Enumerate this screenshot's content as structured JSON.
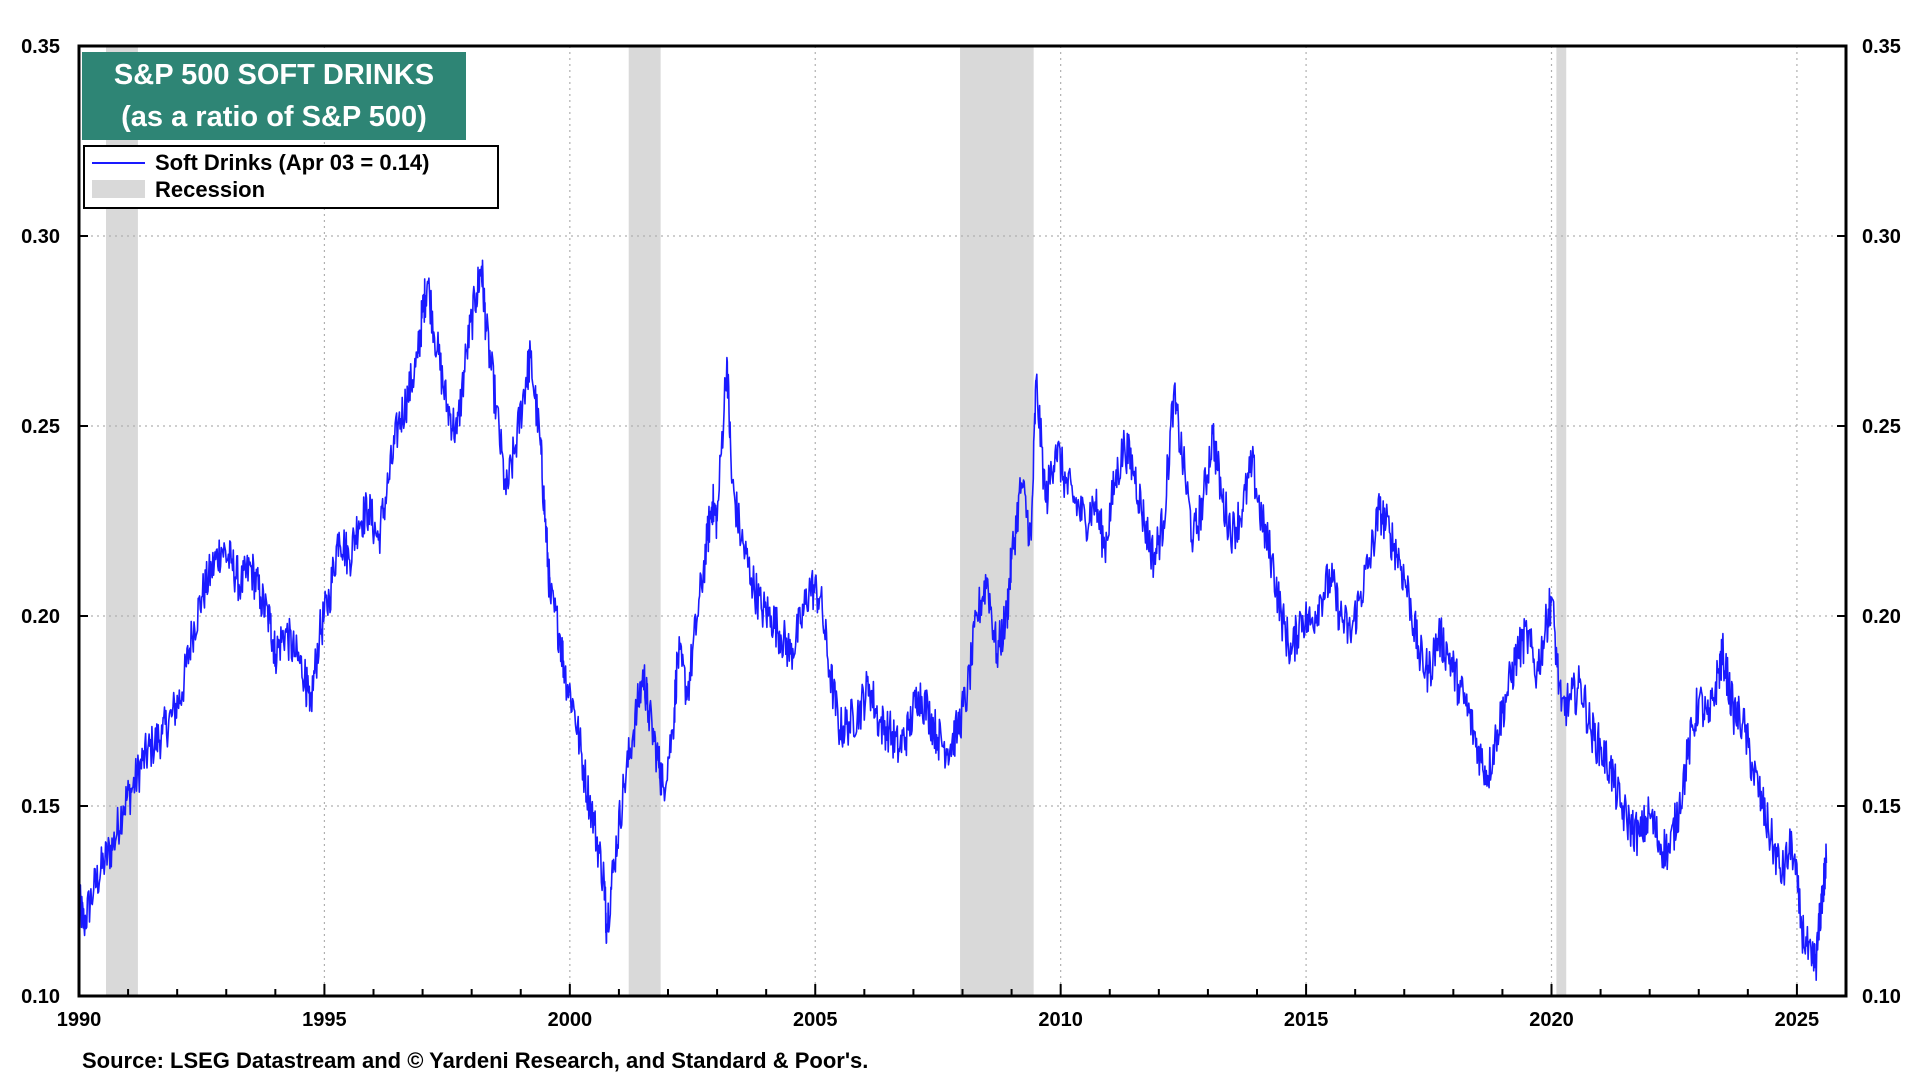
{
  "chart_data": {
    "type": "line",
    "title_lines": [
      "S&P 500 SOFT DRINKS",
      "(as a ratio of S&P 500)"
    ],
    "xlim": [
      1990,
      2026
    ],
    "ylim": [
      0.1,
      0.35
    ],
    "y_ticks": [
      "0.10",
      "0.15",
      "0.20",
      "0.25",
      "0.30",
      "0.35"
    ],
    "x_ticks": [
      "1990",
      "1995",
      "2000",
      "2005",
      "2010",
      "2015",
      "2020",
      "2025"
    ],
    "grid": true,
    "legend_position": "top-left",
    "legend": [
      {
        "label": "Soft Drinks (Apr 03 = 0.14)",
        "kind": "line"
      },
      {
        "label": "Recession",
        "kind": "band"
      }
    ],
    "recessions": [
      [
        1990.55,
        1991.2
      ],
      [
        2001.2,
        2001.85
      ],
      [
        2007.95,
        2009.45
      ],
      [
        2020.1,
        2020.3
      ]
    ],
    "series": [
      {
        "name": "Soft Drinks",
        "color": "#1a1aff",
        "points": [
          [
            1990.0,
            0.125
          ],
          [
            1990.1,
            0.119
          ],
          [
            1990.3,
            0.128
          ],
          [
            1990.5,
            0.135
          ],
          [
            1990.7,
            0.14
          ],
          [
            1990.9,
            0.15
          ],
          [
            1991.1,
            0.155
          ],
          [
            1991.3,
            0.162
          ],
          [
            1991.5,
            0.166
          ],
          [
            1991.7,
            0.169
          ],
          [
            1991.9,
            0.174
          ],
          [
            1992.1,
            0.18
          ],
          [
            1992.3,
            0.195
          ],
          [
            1992.5,
            0.205
          ],
          [
            1992.7,
            0.212
          ],
          [
            1992.9,
            0.218
          ],
          [
            1993.1,
            0.214
          ],
          [
            1993.3,
            0.208
          ],
          [
            1993.5,
            0.213
          ],
          [
            1993.7,
            0.205
          ],
          [
            1993.9,
            0.198
          ],
          [
            1994.0,
            0.19
          ],
          [
            1994.2,
            0.196
          ],
          [
            1994.4,
            0.19
          ],
          [
            1994.6,
            0.185
          ],
          [
            1994.7,
            0.175
          ],
          [
            1994.9,
            0.195
          ],
          [
            1995.1,
            0.205
          ],
          [
            1995.3,
            0.222
          ],
          [
            1995.5,
            0.215
          ],
          [
            1995.7,
            0.225
          ],
          [
            1995.9,
            0.228
          ],
          [
            1996.1,
            0.22
          ],
          [
            1996.3,
            0.235
          ],
          [
            1996.5,
            0.25
          ],
          [
            1996.7,
            0.258
          ],
          [
            1996.9,
            0.268
          ],
          [
            1997.0,
            0.28
          ],
          [
            1997.1,
            0.288
          ],
          [
            1997.3,
            0.27
          ],
          [
            1997.5,
            0.255
          ],
          [
            1997.7,
            0.248
          ],
          [
            1997.9,
            0.27
          ],
          [
            1998.1,
            0.285
          ],
          [
            1998.2,
            0.292
          ],
          [
            1998.3,
            0.275
          ],
          [
            1998.5,
            0.255
          ],
          [
            1998.7,
            0.232
          ],
          [
            1998.9,
            0.245
          ],
          [
            1999.1,
            0.262
          ],
          [
            1999.2,
            0.268
          ],
          [
            1999.4,
            0.245
          ],
          [
            1999.5,
            0.225
          ],
          [
            1999.6,
            0.205
          ],
          [
            1999.8,
            0.195
          ],
          [
            1999.9,
            0.185
          ],
          [
            2000.1,
            0.175
          ],
          [
            2000.3,
            0.158
          ],
          [
            2000.5,
            0.145
          ],
          [
            2000.7,
            0.13
          ],
          [
            2000.75,
            0.118
          ],
          [
            2000.9,
            0.135
          ],
          [
            2001.1,
            0.155
          ],
          [
            2001.3,
            0.17
          ],
          [
            2001.5,
            0.185
          ],
          [
            2001.6,
            0.175
          ],
          [
            2001.8,
            0.162
          ],
          [
            2001.9,
            0.155
          ],
          [
            2002.1,
            0.17
          ],
          [
            2002.2,
            0.19
          ],
          [
            2002.4,
            0.18
          ],
          [
            2002.6,
            0.2
          ],
          [
            2002.8,
            0.22
          ],
          [
            2002.9,
            0.23
          ],
          [
            2003.0,
            0.225
          ],
          [
            2003.2,
            0.268
          ],
          [
            2003.3,
            0.235
          ],
          [
            2003.5,
            0.22
          ],
          [
            2003.7,
            0.21
          ],
          [
            2003.9,
            0.202
          ],
          [
            2004.1,
            0.2
          ],
          [
            2004.3,
            0.195
          ],
          [
            2004.5,
            0.19
          ],
          [
            2004.7,
            0.198
          ],
          [
            2004.9,
            0.208
          ],
          [
            2005.1,
            0.205
          ],
          [
            2005.3,
            0.185
          ],
          [
            2005.5,
            0.17
          ],
          [
            2005.7,
            0.172
          ],
          [
            2005.9,
            0.175
          ],
          [
            2006.1,
            0.182
          ],
          [
            2006.3,
            0.172
          ],
          [
            2006.5,
            0.17
          ],
          [
            2006.7,
            0.165
          ],
          [
            2006.9,
            0.17
          ],
          [
            2007.1,
            0.18
          ],
          [
            2007.3,
            0.175
          ],
          [
            2007.5,
            0.168
          ],
          [
            2007.7,
            0.165
          ],
          [
            2007.9,
            0.17
          ],
          [
            2008.1,
            0.18
          ],
          [
            2008.3,
            0.2
          ],
          [
            2008.5,
            0.21
          ],
          [
            2008.7,
            0.19
          ],
          [
            2008.9,
            0.2
          ],
          [
            2009.0,
            0.215
          ],
          [
            2009.2,
            0.235
          ],
          [
            2009.4,
            0.22
          ],
          [
            2009.5,
            0.262
          ],
          [
            2009.7,
            0.23
          ],
          [
            2009.9,
            0.245
          ],
          [
            2010.1,
            0.235
          ],
          [
            2010.3,
            0.23
          ],
          [
            2010.5,
            0.225
          ],
          [
            2010.7,
            0.23
          ],
          [
            2010.9,
            0.218
          ],
          [
            2011.1,
            0.235
          ],
          [
            2011.3,
            0.245
          ],
          [
            2011.5,
            0.238
          ],
          [
            2011.7,
            0.225
          ],
          [
            2011.9,
            0.215
          ],
          [
            2012.1,
            0.225
          ],
          [
            2012.3,
            0.258
          ],
          [
            2012.5,
            0.24
          ],
          [
            2012.7,
            0.22
          ],
          [
            2012.9,
            0.23
          ],
          [
            2013.1,
            0.248
          ],
          [
            2013.3,
            0.23
          ],
          [
            2013.5,
            0.222
          ],
          [
            2013.7,
            0.228
          ],
          [
            2013.9,
            0.24
          ],
          [
            2014.1,
            0.225
          ],
          [
            2014.3,
            0.215
          ],
          [
            2014.5,
            0.2
          ],
          [
            2014.7,
            0.19
          ],
          [
            2014.9,
            0.2
          ],
          [
            2015.1,
            0.198
          ],
          [
            2015.3,
            0.205
          ],
          [
            2015.5,
            0.21
          ],
          [
            2015.7,
            0.2
          ],
          [
            2015.9,
            0.195
          ],
          [
            2016.1,
            0.205
          ],
          [
            2016.3,
            0.215
          ],
          [
            2016.5,
            0.228
          ],
          [
            2016.7,
            0.222
          ],
          [
            2016.9,
            0.215
          ],
          [
            2017.1,
            0.205
          ],
          [
            2017.3,
            0.19
          ],
          [
            2017.5,
            0.185
          ],
          [
            2017.7,
            0.195
          ],
          [
            2017.9,
            0.19
          ],
          [
            2018.1,
            0.182
          ],
          [
            2018.3,
            0.175
          ],
          [
            2018.5,
            0.165
          ],
          [
            2018.7,
            0.158
          ],
          [
            2018.9,
            0.17
          ],
          [
            2019.1,
            0.18
          ],
          [
            2019.3,
            0.19
          ],
          [
            2019.5,
            0.195
          ],
          [
            2019.7,
            0.185
          ],
          [
            2019.9,
            0.198
          ],
          [
            2020.0,
            0.205
          ],
          [
            2020.2,
            0.175
          ],
          [
            2020.4,
            0.178
          ],
          [
            2020.6,
            0.182
          ],
          [
            2020.8,
            0.17
          ],
          [
            2021.0,
            0.165
          ],
          [
            2021.2,
            0.16
          ],
          [
            2021.4,
            0.15
          ],
          [
            2021.6,
            0.145
          ],
          [
            2021.8,
            0.142
          ],
          [
            2022.0,
            0.148
          ],
          [
            2022.2,
            0.14
          ],
          [
            2022.4,
            0.138
          ],
          [
            2022.6,
            0.15
          ],
          [
            2022.8,
            0.165
          ],
          [
            2023.0,
            0.178
          ],
          [
            2023.2,
            0.172
          ],
          [
            2023.4,
            0.185
          ],
          [
            2023.5,
            0.19
          ],
          [
            2023.7,
            0.175
          ],
          [
            2023.9,
            0.172
          ],
          [
            2024.1,
            0.16
          ],
          [
            2024.3,
            0.15
          ],
          [
            2024.5,
            0.14
          ],
          [
            2024.7,
            0.132
          ],
          [
            2024.9,
            0.14
          ],
          [
            2025.1,
            0.118
          ],
          [
            2025.3,
            0.108
          ],
          [
            2025.4,
            0.11
          ],
          [
            2025.5,
            0.125
          ],
          [
            2025.6,
            0.135
          ]
        ]
      }
    ]
  },
  "source": "Source: LSEG Datastream and © Yardeni Research, and Standard & Poor's."
}
